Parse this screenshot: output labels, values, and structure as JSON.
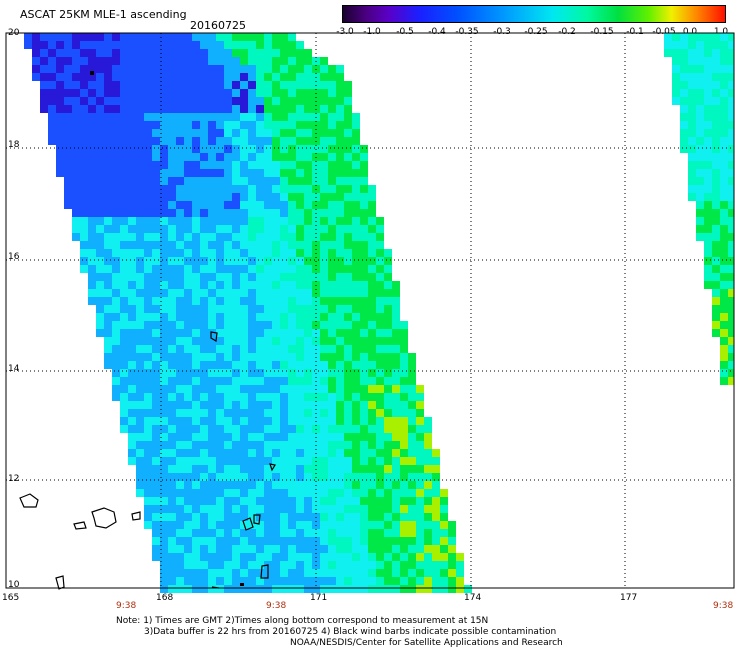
{
  "header": {
    "title": "ASCAT 25KM MLE-1 ascending",
    "date": "20160725"
  },
  "colorbar": {
    "labels": [
      "-3.0",
      "-1.0",
      "-0.5",
      "-0.4",
      "-0.35",
      "-0.3",
      "-0.25",
      "-0.2",
      "-0.15",
      "-0.1",
      "-0.05",
      "0.0",
      "1.0"
    ]
  },
  "axes": {
    "lat_labels": [
      "20",
      "18",
      "16",
      "14",
      "12",
      "10"
    ],
    "lon_labels": [
      "165",
      "168",
      "171",
      "174",
      "177"
    ],
    "time_labels": [
      "9:38",
      "9:38",
      "9:38"
    ]
  },
  "notes": {
    "line1": "Note: 1) Times are GMT 2)Times along bottom correspond to measurement at 15N",
    "line2": "3)Data buffer is 22 hrs from 20160725 4) Black wind barbs indicate possible contamination",
    "line3": "NOAA/NESDIS/Center for Satellite Applications and Research"
  },
  "colors": {
    "deep_blue": "#2818d8",
    "blue": "#1a50ff",
    "light_blue": "#10b0ff",
    "cyan": "#10f0f0",
    "aqua": "#00f8c0",
    "green": "#00e848",
    "yellow_green": "#a8f000",
    "grid": "#000000",
    "time_label": "#b03010"
  }
}
